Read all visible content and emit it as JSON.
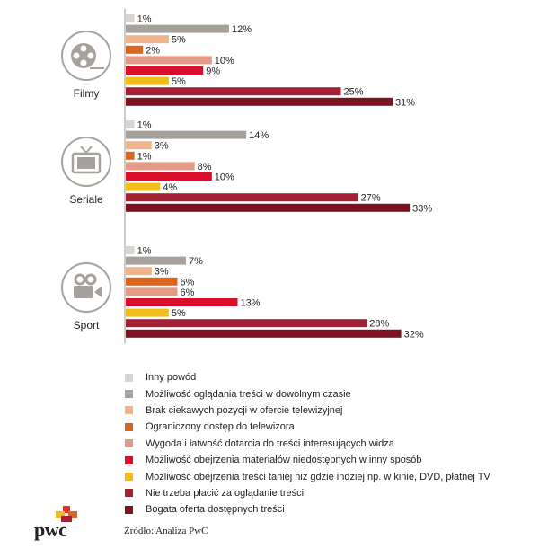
{
  "chart_data": {
    "type": "bar",
    "orientation": "horizontal",
    "xlim": [
      0,
      33
    ],
    "series": [
      {
        "name": "Inny powód",
        "color": "#d9d6d2"
      },
      {
        "name": "Możliwość oglądania treści w dowolnym czasie",
        "color": "#a7a19c"
      },
      {
        "name": "Brak ciekawych pozycji w ofercie telewizyjnej",
        "color": "#f1b48a"
      },
      {
        "name": "Ograniczony dostęp do telewizora",
        "color": "#d9661f"
      },
      {
        "name": "Wygoda i łatwość dotarcia do treści interesujących widza",
        "color": "#e59a86"
      },
      {
        "name": "Możliwość obejrzenia materiałów niedostępnych w inny sposób",
        "color": "#d9102a"
      },
      {
        "name": "Możliwość obejrzenia treści taniej niż gdzie indziej np. w kinie, DVD, płatnej TV",
        "color": "#f1bd1a"
      },
      {
        "name": "Nie trzeba płacić za oglądanie treści",
        "color": "#a32035"
      },
      {
        "name": "Bogata oferta dostępnych treści",
        "color": "#7b1420"
      }
    ],
    "groups": [
      {
        "name": "Filmy",
        "icon": "film-reel-icon",
        "values": [
          1,
          12,
          5,
          2,
          10,
          9,
          5,
          25,
          31
        ],
        "labels": [
          "1%",
          "12%",
          "5%",
          "2%",
          "10%",
          "9%",
          "5%",
          "25%",
          "31%"
        ]
      },
      {
        "name": "Seriale",
        "icon": "tv-icon",
        "values": [
          1,
          14,
          3,
          1,
          8,
          10,
          4,
          27,
          33
        ],
        "labels": [
          "1%",
          "14%",
          "3%",
          "1%",
          "8%",
          "10%",
          "4%",
          "27%",
          "33%"
        ]
      },
      {
        "name": "Sport",
        "icon": "video-camera-icon",
        "values": [
          1,
          7,
          3,
          6,
          6,
          13,
          5,
          28,
          32
        ],
        "labels": [
          "1%",
          "7%",
          "3%",
          "6%",
          "6%",
          "13%",
          "5%",
          "28%",
          "32%"
        ]
      }
    ]
  },
  "footer": {
    "source": "Źródło: Analiza PwC",
    "logo_text": "pwc"
  }
}
